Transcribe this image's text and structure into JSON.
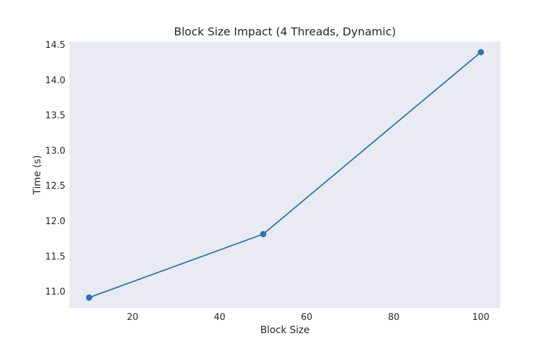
{
  "chart_data": {
    "type": "line",
    "title": "Block Size Impact (4 Threads, Dynamic)",
    "xlabel": "Block Size",
    "ylabel": "Time (s)",
    "x": [
      10,
      50,
      100
    ],
    "series": [
      {
        "values": [
          10.91,
          11.81,
          14.39
        ],
        "color": "#1f77b4",
        "marker": "circle"
      }
    ],
    "xlim": [
      5.5,
      104.5
    ],
    "ylim": [
      10.76,
      14.54
    ],
    "xticks": [
      20,
      40,
      60,
      80,
      100
    ],
    "yticks": [
      11.0,
      11.5,
      12.0,
      12.5,
      13.0,
      13.5,
      14.0,
      14.5
    ],
    "xtick_labels": [
      "20",
      "40",
      "60",
      "80",
      "100"
    ],
    "ytick_labels": [
      "11.0",
      "11.5",
      "12.0",
      "12.5",
      "13.0",
      "13.5",
      "14.0",
      "14.5"
    ],
    "grid": false,
    "plot_background": "#eaeaf2"
  }
}
